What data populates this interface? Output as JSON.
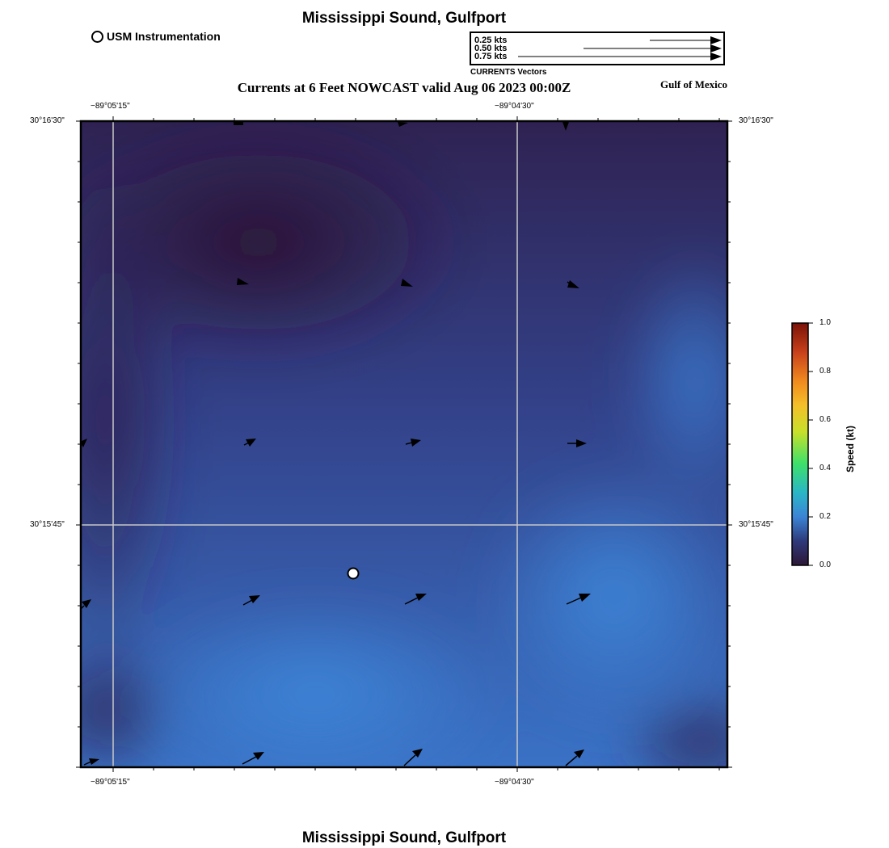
{
  "header": {
    "title": "Mississippi Sound, Gulfport",
    "subtitle": "Currents at 6 Feet NOWCAST valid Aug 06 2023 00:00Z",
    "region": "Gulf of Mexico"
  },
  "footer": {
    "title": "Mississippi Sound, Gulfport"
  },
  "legend": {
    "station_label": "USM Instrumentation"
  },
  "vector_key": {
    "caption": "CURRENTS Vectors",
    "entries": [
      "0.25 kts",
      "0.50 kts",
      "0.75 kts"
    ]
  },
  "axes": {
    "lon_labels": [
      "−89°05'15\"",
      "−89°04'30\""
    ],
    "lat_labels": [
      "30°16'30\"",
      "30°15'45\""
    ]
  },
  "colorbar": {
    "title": "Speed (kt)",
    "ticks": [
      "1.0",
      "0.8",
      "0.6",
      "0.4",
      "0.2",
      "0.0"
    ],
    "colors": [
      "#2d1737",
      "#2e3a7a",
      "#3b84d6",
      "#2ab6c6",
      "#3ee06a",
      "#c7e02a",
      "#f4c02a",
      "#f08a1e",
      "#c8401a",
      "#7a1208"
    ]
  }
}
